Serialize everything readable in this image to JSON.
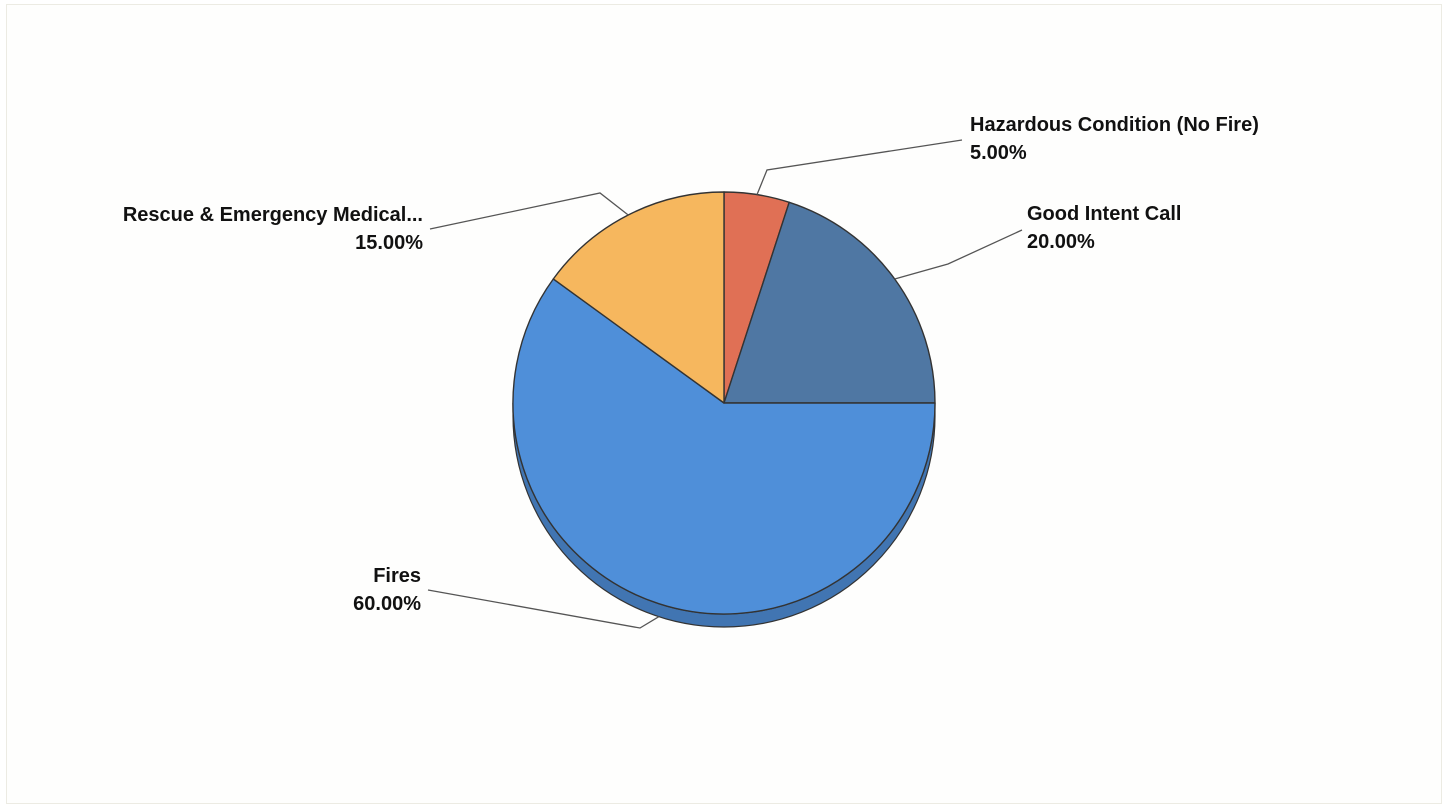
{
  "chart_data": {
    "type": "pie",
    "title": "",
    "slices": [
      {
        "label": "Hazardous Condition (No Fire)",
        "value": 5.0,
        "display": "5.00%",
        "color": "#e07055"
      },
      {
        "label": "Good Intent Call",
        "value": 20.0,
        "display": "20.00%",
        "color": "#4f77a3"
      },
      {
        "label": "Fires",
        "value": 60.0,
        "display": "60.00%",
        "color": "#4f8fd9"
      },
      {
        "label": "Rescue & Emergency Medical...",
        "value": 15.0,
        "display": "15.00%",
        "color": "#f6b75e"
      }
    ],
    "style": "3d-tilted",
    "start_angle": "top",
    "direction": "clockwise",
    "legend": "none"
  }
}
